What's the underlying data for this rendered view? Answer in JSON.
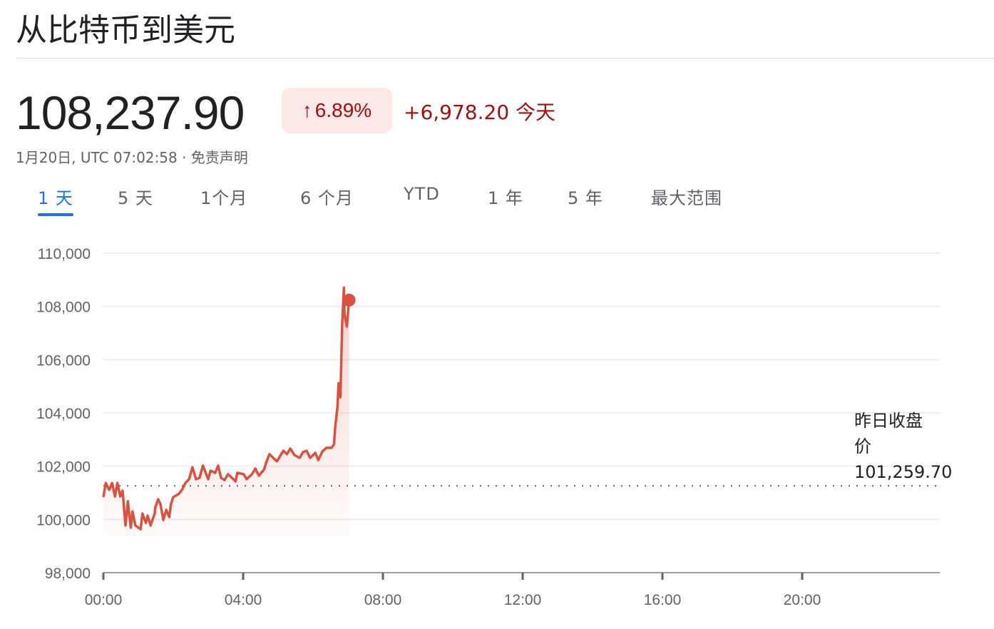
{
  "header": {
    "title": "从比特币到美元"
  },
  "quote": {
    "price": "108,237.90",
    "change_percent": "6.89%",
    "change_icon": "arrow-up-icon",
    "change_absolute": "+6,978.20 今天",
    "timestamp": "1月20日, UTC 07:02:58 · 免责声明",
    "trend_color": "#a50e0e",
    "badge_color": "#fce8e6"
  },
  "tabs": [
    {
      "label": "1 天",
      "selected": true
    },
    {
      "label": "5 天"
    },
    {
      "label": "1个月"
    },
    {
      "label": "6 个月"
    },
    {
      "label": "YTD"
    },
    {
      "label": "1 年"
    },
    {
      "label": "5 年"
    },
    {
      "label": "最大范围"
    }
  ],
  "reference": {
    "label": "昨日收盘价",
    "value": "101,259.70"
  },
  "chart_data": {
    "type": "line",
    "title": "",
    "xlabel": "",
    "ylabel": "",
    "line_color": "#d9513f",
    "grid": true,
    "ylim": [
      98000,
      110000
    ],
    "y_ticks": [
      "98,000",
      "100,000",
      "102,000",
      "104,000",
      "106,000",
      "108,000",
      "110,000"
    ],
    "y_tick_values": [
      98000,
      100000,
      102000,
      104000,
      106000,
      108000,
      110000
    ],
    "x_ticks": [
      "00:00",
      "04:00",
      "08:00",
      "12:00",
      "16:00",
      "20:00"
    ],
    "xlim": [
      "00:00",
      "24:00"
    ],
    "reference_line": 101259.7,
    "series": [
      {
        "points": [
          [
            "00:00",
            100840
          ],
          [
            "00:04",
            101370
          ],
          [
            "00:10",
            101110
          ],
          [
            "00:15",
            101370
          ],
          [
            "00:20",
            100860
          ],
          [
            "00:24",
            101370
          ],
          [
            "00:29",
            100860
          ],
          [
            "00:33",
            101080
          ],
          [
            "00:38",
            99770
          ],
          [
            "00:42",
            100680
          ],
          [
            "00:47",
            99690
          ],
          [
            "00:50",
            100300
          ],
          [
            "00:55",
            99770
          ],
          [
            "01:04",
            99630
          ],
          [
            "01:07",
            100220
          ],
          [
            "01:13",
            99870
          ],
          [
            "01:16",
            100140
          ],
          [
            "01:21",
            99770
          ],
          [
            "01:28",
            100220
          ],
          [
            "01:29",
            100440
          ],
          [
            "01:34",
            100760
          ],
          [
            "01:38",
            100570
          ],
          [
            "01:43",
            99980
          ],
          [
            "01:48",
            100360
          ],
          [
            "01:53",
            100090
          ],
          [
            "01:56",
            100570
          ],
          [
            "02:00",
            100840
          ],
          [
            "02:09",
            100950
          ],
          [
            "02:15",
            101110
          ],
          [
            "02:21",
            101370
          ],
          [
            "02:27",
            101510
          ],
          [
            "02:33",
            101960
          ],
          [
            "02:39",
            101510
          ],
          [
            "02:45",
            101560
          ],
          [
            "02:51",
            102020
          ],
          [
            "03:00",
            101510
          ],
          [
            "03:04",
            101830
          ],
          [
            "03:12",
            101750
          ],
          [
            "03:17",
            102020
          ],
          [
            "03:22",
            101560
          ],
          [
            "03:28",
            101480
          ],
          [
            "03:34",
            101700
          ],
          [
            "03:47",
            101430
          ],
          [
            "03:50",
            101750
          ],
          [
            "04:01",
            101700
          ],
          [
            "04:06",
            101510
          ],
          [
            "04:15",
            101700
          ],
          [
            "04:21",
            101910
          ],
          [
            "04:27",
            101640
          ],
          [
            "04:36",
            101880
          ],
          [
            "04:39",
            102100
          ],
          [
            "04:45",
            102450
          ],
          [
            "04:58",
            102180
          ],
          [
            "05:09",
            102580
          ],
          [
            "05:15",
            102450
          ],
          [
            "05:21",
            102660
          ],
          [
            "05:28",
            102420
          ],
          [
            "05:37",
            102310
          ],
          [
            "05:43",
            102530
          ],
          [
            "05:49",
            102580
          ],
          [
            "05:55",
            102310
          ],
          [
            "06:04",
            102500
          ],
          [
            "06:09",
            102230
          ],
          [
            "06:16",
            102550
          ],
          [
            "06:23",
            102690
          ],
          [
            "06:32",
            102690
          ],
          [
            "06:36",
            102820
          ],
          [
            "06:38",
            103440
          ],
          [
            "06:42",
            104240
          ],
          [
            "06:44",
            105120
          ],
          [
            "06:47",
            104590
          ],
          [
            "06:49",
            106380
          ],
          [
            "06:50",
            107270
          ],
          [
            "06:53",
            108710
          ],
          [
            "06:54",
            107720
          ],
          [
            "06:58",
            107240
          ],
          [
            "07:02",
            108237.9
          ]
        ]
      }
    ]
  }
}
